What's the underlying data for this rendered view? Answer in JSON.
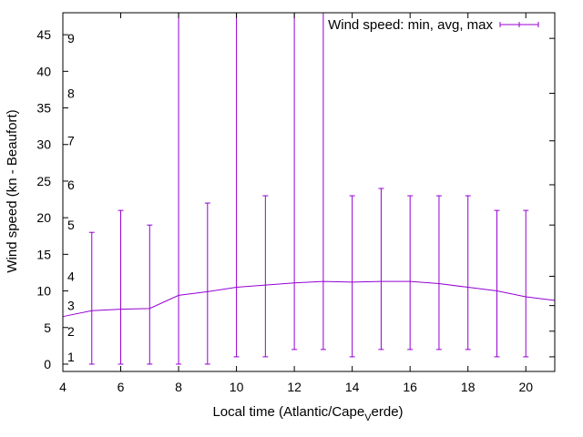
{
  "chart_data": {
    "type": "line",
    "xlabel_main": "Local time (Atlantic/Cape",
    "xlabel_sub": "V",
    "xlabel_tail": "erde)",
    "ylabel": "Wind speed (kn - Beaufort)",
    "xlim": [
      4,
      21
    ],
    "ylim": [
      -1,
      48
    ],
    "xticks": [
      4,
      6,
      8,
      10,
      12,
      14,
      16,
      18,
      20
    ],
    "yticks": [
      0,
      5,
      10,
      15,
      20,
      25,
      30,
      35,
      40,
      45
    ],
    "grid": false,
    "legend": {
      "label": "Wind speed: min, avg, max",
      "position": "top-right"
    },
    "line_color": "#9400d3",
    "beaufort_labels": [
      {
        "label": "1",
        "kn": 1
      },
      {
        "label": "2",
        "kn": 4.5
      },
      {
        "label": "3",
        "kn": 8
      },
      {
        "label": "4",
        "kn": 12
      },
      {
        "label": "5",
        "kn": 19
      },
      {
        "label": "6",
        "kn": 24.5
      },
      {
        "label": "7",
        "kn": 30.5
      },
      {
        "label": "8",
        "kn": 37
      },
      {
        "label": "9",
        "kn": 44.5
      }
    ],
    "series": [
      {
        "x": [
          4,
          5,
          6,
          7,
          8,
          9,
          10,
          11,
          12,
          13,
          14,
          15,
          16,
          17,
          18,
          19,
          20,
          21
        ],
        "avg": [
          6.5,
          7.3,
          7.5,
          7.6,
          9.4,
          9.9,
          10.5,
          10.8,
          11.1,
          11.3,
          11.2,
          11.3,
          11.3,
          11.0,
          10.5,
          10.0,
          9.2,
          8.7
        ],
        "min": [
          null,
          0,
          0,
          0,
          0,
          0,
          1,
          1,
          2,
          2,
          1,
          2,
          2,
          2,
          2,
          1,
          1,
          null
        ],
        "max": [
          null,
          18,
          21,
          19,
          48,
          22,
          48,
          23,
          48,
          48,
          23,
          24,
          23,
          23,
          23,
          21,
          21,
          null
        ]
      }
    ]
  }
}
